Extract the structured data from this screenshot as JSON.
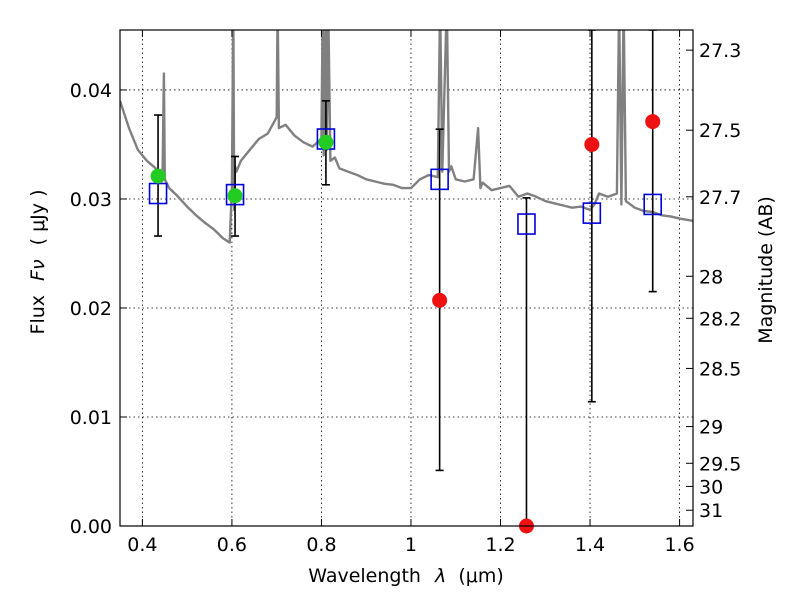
{
  "chart_data": {
    "type": "scatter",
    "title": "",
    "xlabel_text": "Wavelength",
    "xlabel_symbol": "λ",
    "xlabel_unit": "(μm)",
    "ylabel_text": "Flux",
    "ylabel_symbol": "Fν",
    "ylabel_unit": "( μJy )",
    "y2label": "Magnitude (AB)",
    "xlim": [
      0.35,
      1.63
    ],
    "ylim": [
      0.0,
      0.0455
    ],
    "grid": true,
    "x_ticks": [
      {
        "value": 0.4,
        "label": "0.4"
      },
      {
        "value": 0.6,
        "label": "0.6"
      },
      {
        "value": 0.8,
        "label": "0.8"
      },
      {
        "value": 1.0,
        "label": "1"
      },
      {
        "value": 1.2,
        "label": "1.2"
      },
      {
        "value": 1.4,
        "label": "1.4"
      },
      {
        "value": 1.6,
        "label": "1.6"
      }
    ],
    "y_ticks": [
      {
        "value": 0.0,
        "label": "0.00"
      },
      {
        "value": 0.01,
        "label": "0.01"
      },
      {
        "value": 0.02,
        "label": "0.02"
      },
      {
        "value": 0.03,
        "label": "0.03"
      },
      {
        "value": 0.04,
        "label": "0.04"
      }
    ],
    "y2_ticks": [
      {
        "value": 27.3,
        "label": "27.3"
      },
      {
        "value": 27.5,
        "label": "27.5"
      },
      {
        "value": 27.7,
        "label": "27.7"
      },
      {
        "value": 28.0,
        "label": "28"
      },
      {
        "value": 28.2,
        "label": "28.2"
      },
      {
        "value": 28.5,
        "label": "28.5"
      },
      {
        "value": 29.0,
        "label": "29"
      },
      {
        "value": 29.5,
        "label": "29.5"
      },
      {
        "value": 30.0,
        "label": "30"
      },
      {
        "value": 31.0,
        "label": "31"
      }
    ],
    "model_spectrum": {
      "color": "#808080",
      "x": [
        0.35,
        0.37,
        0.39,
        0.41,
        0.43,
        0.435,
        0.44,
        0.445,
        0.448,
        0.45,
        0.46,
        0.48,
        0.5,
        0.52,
        0.54,
        0.56,
        0.58,
        0.595,
        0.6,
        0.603,
        0.605,
        0.607,
        0.61,
        0.62,
        0.64,
        0.66,
        0.68,
        0.7,
        0.702,
        0.705,
        0.72,
        0.74,
        0.76,
        0.78,
        0.8,
        0.803,
        0.805,
        0.81,
        0.812,
        0.815,
        0.82,
        0.83,
        0.84,
        0.86,
        0.88,
        0.9,
        0.92,
        0.94,
        0.96,
        0.98,
        1.0,
        1.02,
        1.04,
        1.06,
        1.065,
        1.07,
        1.08,
        1.085,
        1.09,
        1.1,
        1.12,
        1.14,
        1.15,
        1.155,
        1.16,
        1.18,
        1.2,
        1.22,
        1.24,
        1.26,
        1.28,
        1.3,
        1.32,
        1.34,
        1.36,
        1.38,
        1.4,
        1.41,
        1.42,
        1.44,
        1.46,
        1.465,
        1.47,
        1.475,
        1.48,
        1.5,
        1.52,
        1.54,
        1.56,
        1.58,
        1.6,
        1.63
      ],
      "y": [
        0.039,
        0.0365,
        0.0345,
        0.0335,
        0.0328,
        0.0325,
        0.0324,
        0.032,
        0.0415,
        0.0318,
        0.031,
        0.0302,
        0.0293,
        0.0285,
        0.0278,
        0.0272,
        0.0264,
        0.026,
        0.031,
        0.048,
        0.029,
        0.033,
        0.0325,
        0.0335,
        0.0345,
        0.0355,
        0.036,
        0.0375,
        0.048,
        0.0365,
        0.0368,
        0.0358,
        0.0352,
        0.0348,
        0.0355,
        0.048,
        0.034,
        0.048,
        0.0345,
        0.048,
        0.0335,
        0.0338,
        0.0328,
        0.0325,
        0.0322,
        0.0318,
        0.0316,
        0.0314,
        0.0313,
        0.031,
        0.031,
        0.0318,
        0.0322,
        0.032,
        0.048,
        0.0325,
        0.048,
        0.0325,
        0.033,
        0.0318,
        0.0316,
        0.0318,
        0.0365,
        0.031,
        0.0315,
        0.0308,
        0.031,
        0.0312,
        0.0302,
        0.0305,
        0.0302,
        0.0298,
        0.0296,
        0.0294,
        0.0292,
        0.0293,
        0.029,
        0.0295,
        0.0305,
        0.0302,
        0.0305,
        0.048,
        0.0295,
        0.048,
        0.0298,
        0.0292,
        0.0289,
        0.0288,
        0.0285,
        0.0284,
        0.0282,
        0.028
      ]
    },
    "series": [
      {
        "marker": "square-open",
        "color": "#0000dd",
        "points": [
          {
            "x": 0.435,
            "y": 0.0305
          },
          {
            "x": 0.607,
            "y": 0.0304
          },
          {
            "x": 0.81,
            "y": 0.0355
          },
          {
            "x": 1.064,
            "y": 0.0318
          },
          {
            "x": 1.258,
            "y": 0.0277
          },
          {
            "x": 1.404,
            "y": 0.0287
          },
          {
            "x": 1.54,
            "y": 0.0295
          }
        ]
      },
      {
        "marker": "circle",
        "color": "#22cc22",
        "points": [
          {
            "x": 0.435,
            "y": 0.0321,
            "err_lo": 0.0266,
            "err_hi": 0.0377
          },
          {
            "x": 0.607,
            "y": 0.0303,
            "err_lo": 0.0266,
            "err_hi": 0.0339
          },
          {
            "x": 0.81,
            "y": 0.0352,
            "err_lo": 0.0313,
            "err_hi": 0.039
          }
        ]
      },
      {
        "marker": "circle",
        "color": "#ee1111",
        "points": [
          {
            "x": 1.064,
            "y": 0.0207,
            "err_lo": 0.0051,
            "err_hi": 0.0364
          },
          {
            "x": 1.258,
            "y": 0.0,
            "err_lo": 0.0,
            "err_hi": 0.0301
          },
          {
            "x": 1.404,
            "y": 0.035,
            "err_lo": 0.0114,
            "err_hi": 0.0455
          },
          {
            "x": 1.54,
            "y": 0.0371,
            "err_lo": 0.0215,
            "err_hi": 0.0455
          }
        ]
      }
    ]
  }
}
